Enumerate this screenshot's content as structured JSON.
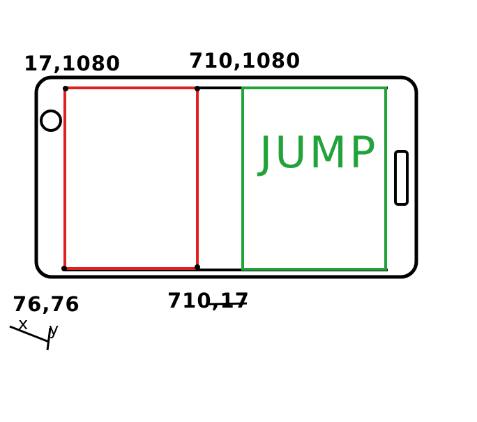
{
  "labels": {
    "top_left": "17,1080",
    "top_middle": "710,1080",
    "bottom_left": "76,76",
    "bottom_middle": "710,17",
    "axis_x": "x",
    "axis_y": "y"
  },
  "jump_zone": {
    "label": "JUMP"
  },
  "colors": {
    "outline": "#000000",
    "left_zone": "#e02020",
    "jump_zone": "#22a33a",
    "background": "#ffffff"
  },
  "icons": {
    "home_button": "circle-button-icon",
    "side_button": "rounded-rect-button-icon"
  }
}
